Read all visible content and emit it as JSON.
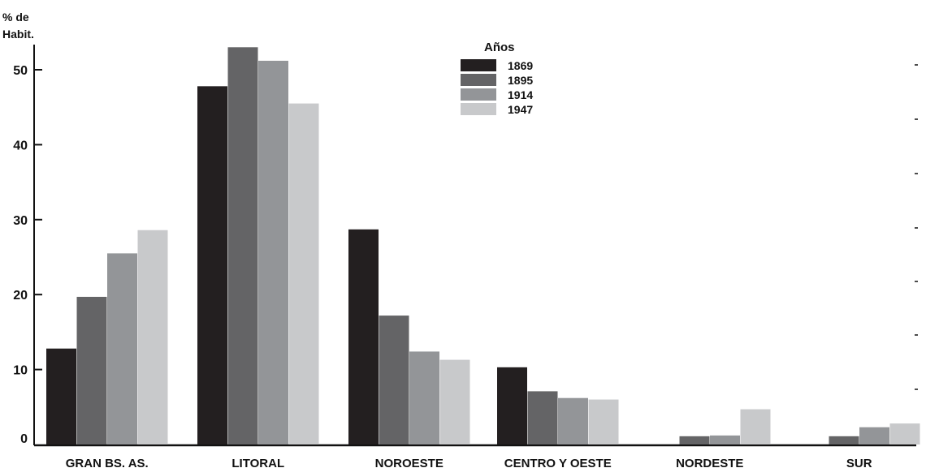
{
  "chart_data": {
    "type": "bar",
    "title": "",
    "ylabel_line1": "% de",
    "ylabel_line2": "Habit.",
    "xlabel": "",
    "ylim": [
      0,
      55
    ],
    "yticks": [
      0,
      10,
      20,
      30,
      40,
      50
    ],
    "grid": false,
    "legend_title": "Años",
    "legend_position": "top-center",
    "categories": [
      "GRAN BS. AS.",
      "LITORAL",
      "NOROESTE",
      "CENTRO Y OESTE",
      "NORDESTE",
      "SUR"
    ],
    "series": [
      {
        "name": "1869",
        "color": "#231f20",
        "values": [
          12.8,
          47.8,
          28.7,
          10.3,
          null,
          null
        ]
      },
      {
        "name": "1895",
        "color": "#646466",
        "values": [
          19.7,
          53.0,
          17.2,
          7.1,
          1.1,
          1.1
        ]
      },
      {
        "name": "1914",
        "color": "#939598",
        "values": [
          25.5,
          51.2,
          12.4,
          6.2,
          1.2,
          2.3
        ]
      },
      {
        "name": "1947",
        "color": "#c8c9cb",
        "values": [
          28.6,
          45.5,
          11.3,
          6.0,
          4.7,
          2.8
        ]
      }
    ]
  }
}
